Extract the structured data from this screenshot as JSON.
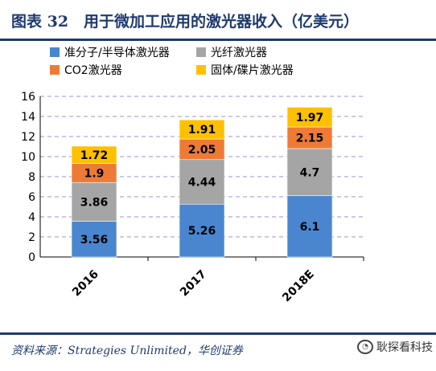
{
  "title": "图表 32　用于微加工应用的激光器收入（亿美元）",
  "source": "资料来源：Strategies Unlimited，华创证券",
  "watermark": "耿探看科技",
  "chart_data": {
    "type": "bar",
    "stacked": true,
    "categories": [
      "2016",
      "2017",
      "2018E"
    ],
    "series": [
      {
        "name": "准分子/半导体激光器",
        "color": "#4a86cf",
        "values": [
          3.56,
          5.26,
          6.1
        ]
      },
      {
        "name": "光纤激光器",
        "color": "#a5a5a5",
        "values": [
          3.86,
          4.44,
          4.7
        ]
      },
      {
        "name": "CO2激光器",
        "color": "#ee7b35",
        "values": [
          1.9,
          2.05,
          2.15
        ]
      },
      {
        "name": "固体/碟片激光器",
        "color": "#ffc000",
        "values": [
          1.72,
          1.91,
          1.97
        ]
      }
    ],
    "ylim": [
      0,
      16
    ],
    "yticks": [
      "0",
      "2",
      "4",
      "6",
      "8",
      "10",
      "12",
      "14",
      "16"
    ],
    "grid": true,
    "legend_position": "top"
  }
}
